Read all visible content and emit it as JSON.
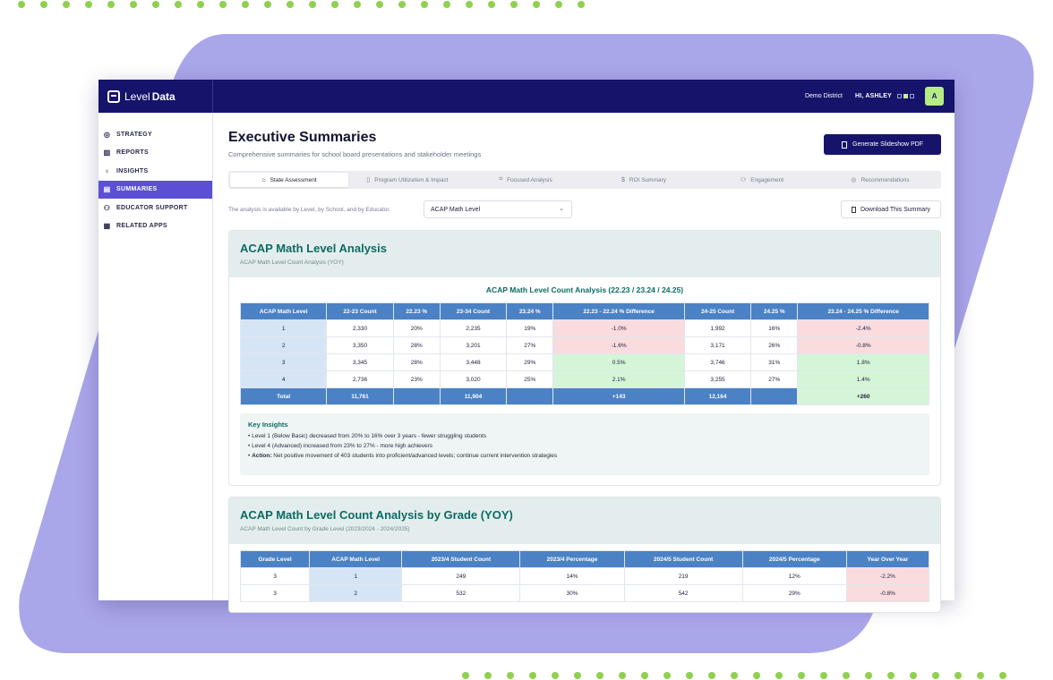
{
  "app": {
    "brand_prefix": "Level",
    "brand_suffix": "Data",
    "district": "Demo District",
    "greeting": "HI, ASHLEY",
    "avatar_initial": "A"
  },
  "sidebar": {
    "items": [
      {
        "label": "STRATEGY",
        "icon": "target-icon"
      },
      {
        "label": "REPORTS",
        "icon": "bar-chart-icon"
      },
      {
        "label": "INSIGHTS",
        "icon": "lightbulb-icon"
      },
      {
        "label": "SUMMARIES",
        "icon": "document-icon",
        "active": true
      },
      {
        "label": "EDUCATOR SUPPORT",
        "icon": "users-icon"
      },
      {
        "label": "RELATED APPS",
        "icon": "grid-icon"
      }
    ]
  },
  "header": {
    "title": "Executive Summaries",
    "subtitle": "Comprehensive summaries for school board presentations and stakeholder meetings",
    "generate_label": "Generate Slideshow PDF"
  },
  "tabs": [
    {
      "label": "State Assessment",
      "icon": "graduation-cap-icon",
      "active": true
    },
    {
      "label": "Program Utilization & Impact",
      "icon": "book-icon"
    },
    {
      "label": "Focused Analysis",
      "icon": "focus-icon"
    },
    {
      "label": "ROI Summary",
      "icon": "dollar-icon"
    },
    {
      "label": "Engagement",
      "icon": "people-icon"
    },
    {
      "label": "Recommendations",
      "icon": "target-icon"
    }
  ],
  "filter": {
    "description": "The analysis is available by Level, by School, and by Educator.",
    "selected": "ACAP Math Level",
    "download_label": "Download This Summary"
  },
  "card1": {
    "title": "ACAP Math Level Analysis",
    "subtitle": "ACAP Math Level Count Analysis (YOY)",
    "table_title": "ACAP Math Level Count Analysis (22.23 / 23.24 / 24.25)",
    "headers": [
      "ACAP Math Level",
      "22-23 Count",
      "22.23 %",
      "23-34 Count",
      "23.24 %",
      "22.23 - 22.24 % Difference",
      "24-25 Count",
      "24.25 %",
      "23.24 - 24.25 % Difference"
    ],
    "rows": [
      [
        "1",
        "2,330",
        "20%",
        "2,235",
        "19%",
        "-1.0%",
        "1,992",
        "16%",
        "-2.4%"
      ],
      [
        "2",
        "3,350",
        "28%",
        "3,201",
        "27%",
        "-1.6%",
        "3,171",
        "26%",
        "-0.8%"
      ],
      [
        "3",
        "3,345",
        "28%",
        "3,448",
        "29%",
        "0.5%",
        "3,746",
        "31%",
        "1.8%"
      ],
      [
        "4",
        "2,736",
        "23%",
        "3,020",
        "25%",
        "2.1%",
        "3,255",
        "27%",
        "1.4%"
      ]
    ],
    "total": [
      "Total",
      "11,761",
      "",
      "11,904",
      "",
      "+143",
      "12,164",
      "",
      "+260"
    ],
    "insights_title": "Key Insights",
    "insight1": "• Level 1 (Below Basic) decreased from 20% to 16% over 3 years - fewer struggling students",
    "insight2": "• Level 4 (Advanced) increased from 23% to 27% - more high achievers",
    "insight3_label": "Action:",
    "insight3_text": " Net positive movement of 403 students into proficient/advanced levels; continue current intervention strategies"
  },
  "card2": {
    "title": "ACAP Math Level Count Analysis by Grade (YOY)",
    "subtitle": "ACAP Math Level Count by Grade Level (2023/2024 - 2024/2025)",
    "headers": [
      "Grade Level",
      "ACAP Math Level",
      "2023/4 Student Count",
      "2023/4 Percentage",
      "2024/5 Student Count",
      "2024/5 Percentage",
      "Year Over Year"
    ],
    "rows": [
      [
        "3",
        "1",
        "249",
        "14%",
        "219",
        "12%",
        "-2.2%"
      ],
      [
        "3",
        "2",
        "532",
        "30%",
        "542",
        "29%",
        "-0.8%"
      ]
    ]
  },
  "colors": {
    "nav": "#15136a",
    "accent": "#5b4fd6",
    "table_header": "#4b82c6",
    "positive": "#d4f5d7",
    "negative": "#fadcdf",
    "teal_title": "#0b6b63",
    "dots": "#8fd14f",
    "blob": "#aaa6ea"
  }
}
